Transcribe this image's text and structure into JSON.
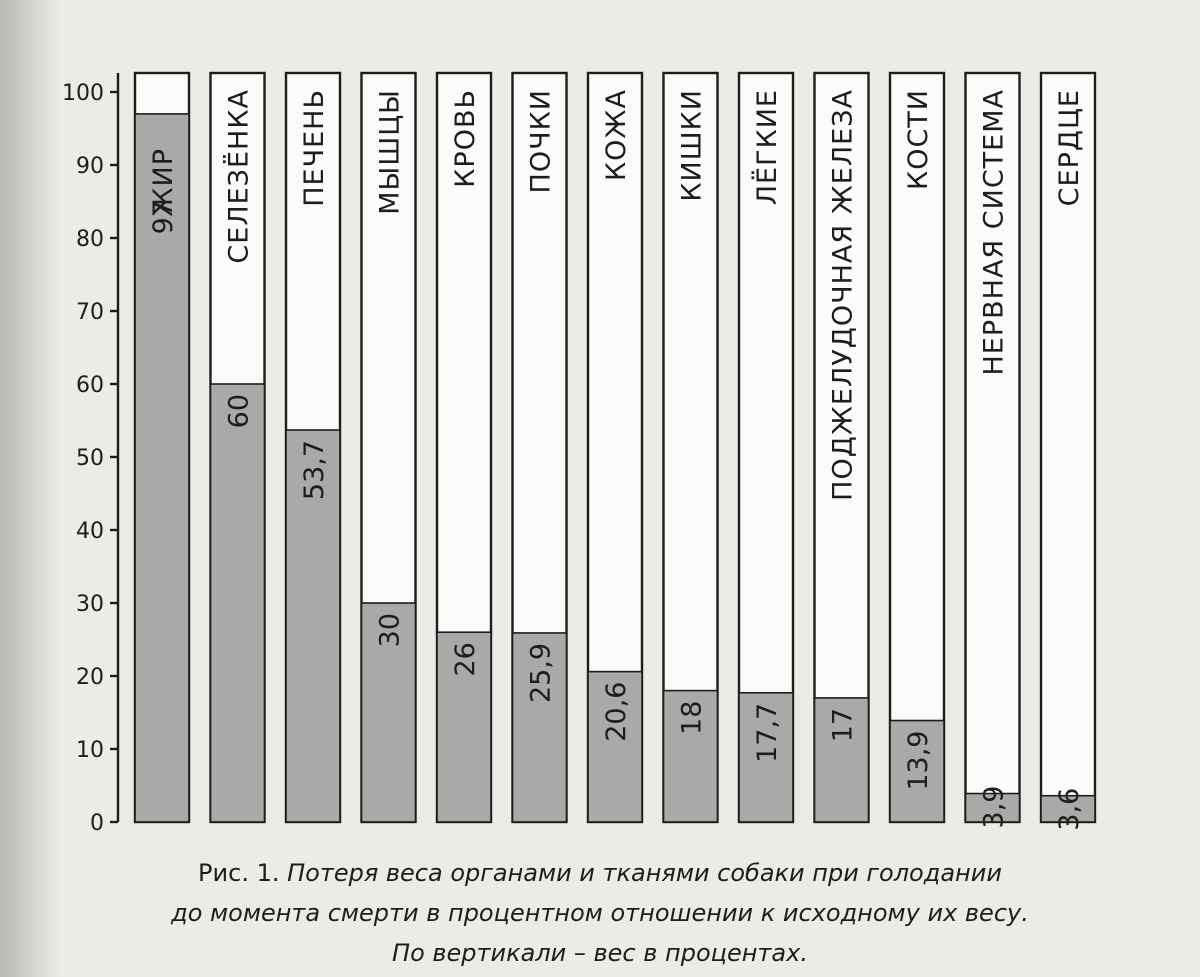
{
  "caption": {
    "prefix": "Рис. 1.",
    "line1": "Потеря веса органами и тканями собаки при голодании",
    "line2": "до момента смерти в процентном отношении к исходному их весу.",
    "line3": "По вертикали – вес в процентах."
  },
  "chart_data": {
    "type": "bar",
    "orientation": "vertical",
    "categories": [
      "ЖИР",
      "СЕЛЕЗЁНКА",
      "ПЕЧЕНЬ",
      "МЫШЦЫ",
      "КРОВЬ",
      "ПОЧКИ",
      "КОЖА",
      "КИШКИ",
      "ЛЁГКИЕ",
      "ПОДЖЕЛУДОЧНАЯ ЖЕЛЕЗА",
      "КОСТИ",
      "НЕРВНАЯ СИСТЕМА",
      "СЕРДЦЕ"
    ],
    "values": [
      97,
      60,
      53.7,
      30,
      26,
      25.9,
      20.6,
      18,
      17.7,
      17,
      13.9,
      3.9,
      3.6
    ],
    "value_labels": [
      "97",
      "60",
      "53,7",
      "30",
      "26",
      "25,9",
      "20,6",
      "18",
      "17,7",
      "17",
      "13,9",
      "3,9",
      "3,6"
    ],
    "yticks": [
      "0",
      "10",
      "20",
      "30",
      "40",
      "50",
      "60",
      "70",
      "80",
      "90",
      "100"
    ],
    "ylim": [
      0,
      100
    ],
    "grid": false,
    "legend": "none",
    "colors": {
      "fill": "#a9a9a7",
      "background": "#fbfbf9",
      "ink": "#1d1d1d"
    }
  }
}
